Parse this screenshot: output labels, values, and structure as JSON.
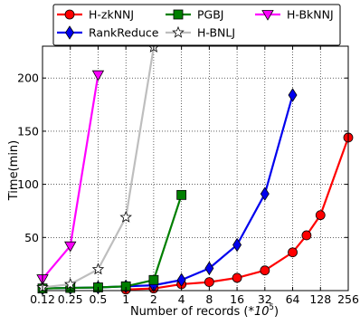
{
  "chart_data": {
    "type": "line",
    "title": "",
    "xlabel": "Number of records (",
    "xlabel_unit_base": "*10",
    "xlabel_unit_exp": "5",
    "xlabel_close": ")",
    "ylabel": "Time(min)",
    "x_scale": "log2 (categorical doubling)",
    "categories": [
      "0.12",
      "0.25",
      "0.5",
      "1",
      "2",
      "4",
      "8",
      "16",
      "32",
      "64",
      "128",
      "256"
    ],
    "y_ticks": [
      "50",
      "100",
      "150",
      "200"
    ],
    "ylim": [
      0,
      230
    ],
    "grid": true,
    "legend_position": "top-center, outside plot",
    "series": [
      {
        "name": "H-zkNNJ",
        "color": "#ff0000",
        "marker": "circle",
        "points": [
          [
            3,
            1
          ],
          [
            4,
            2
          ],
          [
            5,
            6
          ],
          [
            6,
            8
          ],
          [
            7,
            12
          ],
          [
            8,
            19
          ],
          [
            9,
            36
          ],
          [
            9.5,
            52
          ],
          [
            10,
            71
          ],
          [
            11,
            144
          ]
        ]
      },
      {
        "name": "RankReduce",
        "color": "#0000ee",
        "marker": "thin_diamond",
        "points": [
          [
            0,
            2
          ],
          [
            1,
            2.5
          ],
          [
            2,
            3
          ],
          [
            3,
            4
          ],
          [
            4,
            5
          ],
          [
            5,
            10
          ],
          [
            6,
            21
          ],
          [
            7,
            43
          ],
          [
            8,
            91
          ],
          [
            9,
            184
          ]
        ]
      },
      {
        "name": "PGBJ",
        "color": "#007f00",
        "marker": "square",
        "points": [
          [
            0,
            2
          ],
          [
            1,
            2.5
          ],
          [
            2,
            3
          ],
          [
            3,
            4
          ],
          [
            4,
            10
          ],
          [
            5,
            90
          ]
        ]
      },
      {
        "name": "H-BNLJ",
        "color": "#bebebe",
        "marker": "star",
        "points": [
          [
            0,
            3
          ],
          [
            1,
            6
          ],
          [
            2,
            20
          ],
          [
            3,
            69
          ],
          [
            4,
            229
          ]
        ]
      },
      {
        "name": "H-BkNNJ",
        "color": "#ff00ff",
        "marker": "triangle_down",
        "points": [
          [
            0,
            11
          ],
          [
            1,
            42
          ],
          [
            2,
            203
          ]
        ]
      }
    ]
  }
}
